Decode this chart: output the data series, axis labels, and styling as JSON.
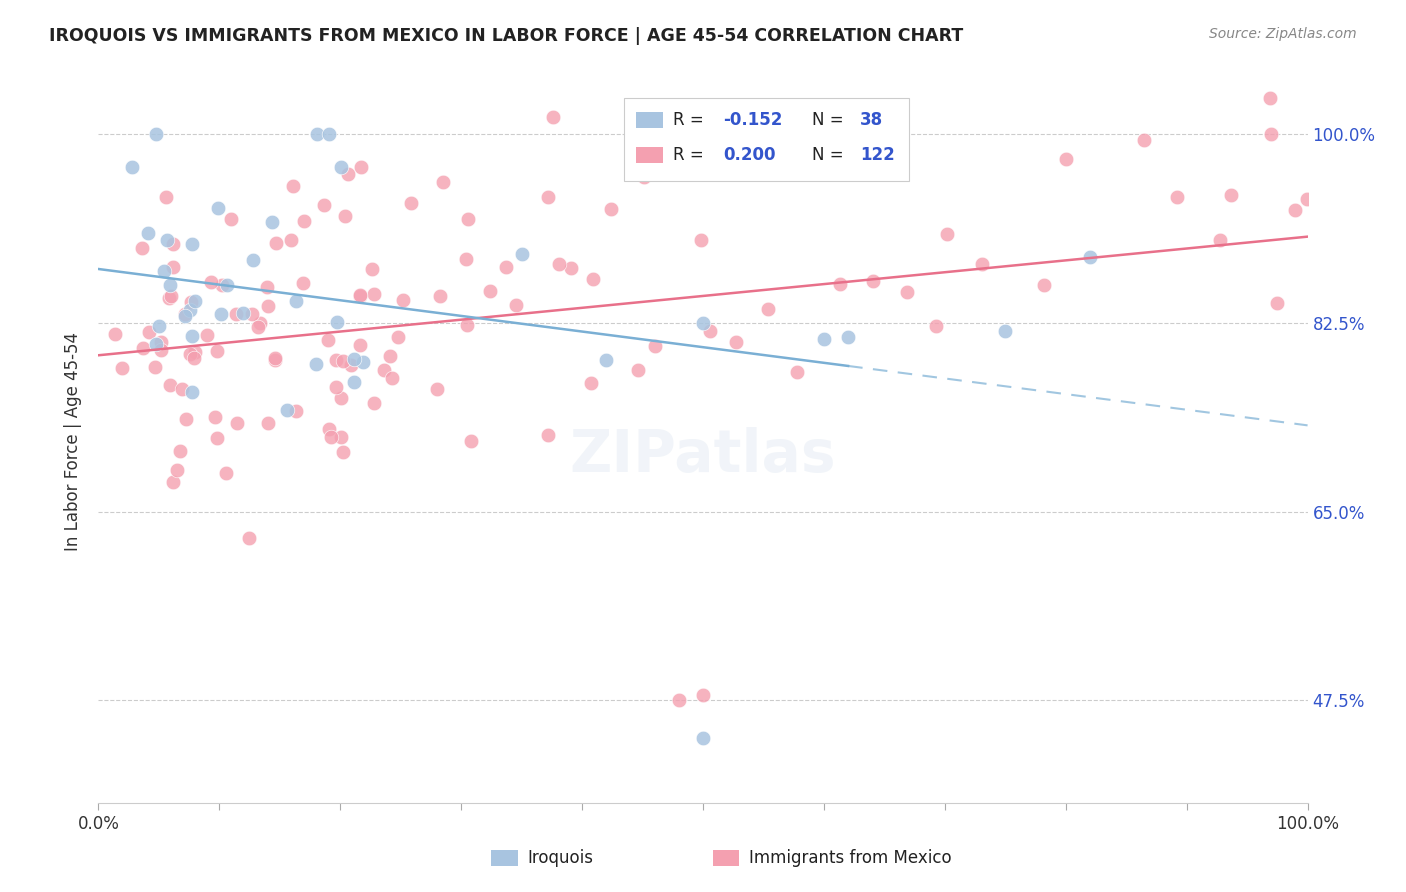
{
  "title": "IROQUOIS VS IMMIGRANTS FROM MEXICO IN LABOR FORCE | AGE 45-54 CORRELATION CHART",
  "source": "Source: ZipAtlas.com",
  "ylabel": "In Labor Force | Age 45-54",
  "ytick_labels": [
    "100.0%",
    "82.5%",
    "65.0%",
    "47.5%"
  ],
  "ytick_values": [
    1.0,
    0.825,
    0.65,
    0.475
  ],
  "xlim": [
    0.0,
    1.0
  ],
  "ylim": [
    0.38,
    1.05
  ],
  "iroquois_color": "#a8c4e0",
  "immigrants_color": "#f4a0b0",
  "trend_iroquois_color": "#7aafd4",
  "trend_immigrants_color": "#e8708a",
  "iroquois_R": -0.152,
  "iroquois_N": 38,
  "immigrants_R": 0.2,
  "immigrants_N": 122,
  "legend_text_color": "#222222",
  "legend_val_color": "#3355cc",
  "source_color": "#888888",
  "title_color": "#222222",
  "grid_color": "#cccccc",
  "axis_color": "#333333"
}
